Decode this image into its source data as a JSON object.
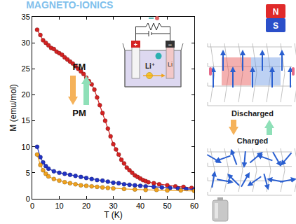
{
  "chart_data": {
    "type": "line",
    "title": "MAGNETO-IONICS",
    "x_label": "T (K)",
    "y_label": "M (emu/mol)",
    "xlim": [
      0,
      60
    ],
    "xticks": [
      0,
      10,
      20,
      30,
      40,
      50,
      60
    ],
    "ylim": [
      0,
      35
    ],
    "yticks": [
      0,
      5,
      10,
      15,
      20,
      25,
      30,
      35
    ],
    "grid": false,
    "series": [
      {
        "color": "#d42222",
        "marker": "circle",
        "line_style": "solid",
        "x": [
          1.8,
          3,
          4,
          5,
          6,
          7,
          8,
          9,
          10,
          11,
          12,
          13,
          14,
          15,
          16,
          17,
          18,
          19,
          20,
          21,
          22,
          23,
          24,
          25,
          26,
          27,
          28,
          29,
          30,
          31,
          32,
          33,
          34,
          35,
          36,
          37,
          38,
          39,
          40,
          41,
          42,
          43,
          45,
          47,
          50,
          53,
          56,
          59
        ],
        "values": [
          32.5,
          31.5,
          30.5,
          30,
          29.5,
          29,
          28.8,
          28.3,
          28,
          27.7,
          27.2,
          26.8,
          26.4,
          26,
          25.5,
          25,
          24.5,
          24,
          23.3,
          22.6,
          22,
          21,
          19.5,
          18,
          16.5,
          15,
          13.5,
          12,
          10.5,
          9.5,
          8.5,
          7.5,
          6.8,
          6,
          5.5,
          5,
          4.5,
          4.2,
          3.9,
          3.6,
          3.4,
          3.2,
          3,
          2.8,
          2.6,
          2.4,
          2.3,
          2.1
        ]
      },
      {
        "color": "#2233c4",
        "marker": "circle",
        "line_style": "solid",
        "x": [
          1.8,
          3,
          4,
          5,
          6,
          8,
          10,
          12,
          14,
          16,
          18,
          20,
          22,
          24,
          26,
          28,
          30,
          32,
          34,
          36,
          38,
          40,
          42,
          45,
          48,
          51,
          54,
          57,
          60
        ],
        "values": [
          10,
          8,
          7,
          6.3,
          5.8,
          5.3,
          5,
          4.8,
          4.6,
          4.4,
          4.2,
          4,
          3.8,
          3.6,
          3.5,
          3.3,
          3.1,
          3,
          2.8,
          2.7,
          2.6,
          2.5,
          2.4,
          2.3,
          2.2,
          2.1,
          2,
          1.9,
          1.8
        ]
      },
      {
        "color": "#f0a21e",
        "marker": "circle",
        "line_style": "solid",
        "x": [
          1.8,
          3,
          4,
          5,
          6,
          8,
          10,
          12,
          14,
          16,
          18,
          20,
          22,
          24,
          26,
          28,
          30,
          34,
          38,
          42,
          46,
          50,
          55,
          60
        ],
        "values": [
          8.5,
          6.5,
          5.5,
          4.8,
          4.3,
          3.8,
          3.5,
          3.2,
          3,
          2.8,
          2.6,
          2.5,
          2.4,
          2.3,
          2.2,
          2.1,
          2,
          1.9,
          1.8,
          1.7,
          1.7,
          1.6,
          1.6,
          1.5
        ]
      }
    ],
    "annotations": [
      "FM",
      "PM"
    ]
  },
  "diagram": {
    "inset": {
      "ion": "Li⁺",
      "electrode": "Li",
      "plus": "+",
      "minus": "−"
    },
    "magnet": {
      "north": "N",
      "south": "S"
    },
    "states": [
      "Discharged",
      "Charged"
    ]
  }
}
